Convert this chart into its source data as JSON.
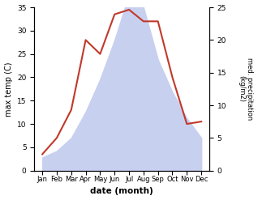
{
  "months": [
    "Jan",
    "Feb",
    "Mar",
    "Apr",
    "May",
    "Jun",
    "Jul",
    "Aug",
    "Sep",
    "Oct",
    "Nov",
    "Dec"
  ],
  "temperature": [
    3.5,
    7.0,
    13.0,
    28.0,
    25.0,
    33.5,
    34.5,
    32.0,
    32.0,
    20.0,
    10.0,
    10.5
  ],
  "precipitation": [
    2.0,
    3.0,
    5.0,
    9.0,
    14.0,
    20.0,
    27.0,
    25.0,
    17.0,
    12.0,
    8.0,
    5.0
  ],
  "temp_color": "#c0392b",
  "precip_fill_color": "#c8d0f0",
  "ylabel_left": "max temp (C)",
  "ylabel_right": "med. precipitation\n(kg/m2)",
  "xlabel": "date (month)",
  "ylim_left": [
    0,
    35
  ],
  "ylim_right": [
    0,
    25
  ],
  "yticks_left": [
    0,
    5,
    10,
    15,
    20,
    25,
    30,
    35
  ],
  "yticks_right": [
    0,
    5,
    10,
    15,
    20,
    25
  ],
  "background_color": "#ffffff"
}
